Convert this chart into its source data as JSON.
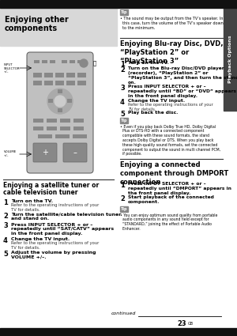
{
  "page_bg": "#ffffff",
  "left_col_bg": "#d8d8d8",
  "black_strip_color": "#111111",
  "header_title_line1": "Enjoying other",
  "header_title_line2": "components",
  "section1_title_line1": "Enjoying a satellite tuner or",
  "section1_title_line2": "cable television tuner",
  "section1_steps": [
    {
      "num": "1",
      "bold": "Turn on the TV.",
      "normal": "Refer to the operating instructions of your\nTV for details."
    },
    {
      "num": "2",
      "bold": "Turn the satellite/cable television tuner\nand stand on.",
      "normal": ""
    },
    {
      "num": "3",
      "bold": "Press INPUT SELECTOR + or –\nrepeatedly until “SAT/CATV” appears\nin the front panel display.",
      "normal": ""
    },
    {
      "num": "4",
      "bold": "Change the TV input.",
      "normal": "Refer to the operating instructions of your\nTV for details."
    },
    {
      "num": "5",
      "bold": "Adjust the volume by pressing\nVOLUME +/–.",
      "normal": ""
    }
  ],
  "right_tip1_text": "• The sound may be output from the TV’s speaker. In\n  this case, turn the volume of the TV’s speaker down\n  to the minimum.",
  "right_section2_title": "Enjoying Blu-ray Disc, DVD,\n“PlayStation 2” or\n“PlayStation 3”",
  "right_section2_steps": [
    {
      "num": "1",
      "bold": "Turn on the TV.",
      "normal": ""
    },
    {
      "num": "2",
      "bold": "Turn on the Blu-ray Disc/DVD player\n(recorder), “PlayStation 2” or\n“PlayStation 3”, and then turn the stand\non.",
      "normal": ""
    },
    {
      "num": "3",
      "bold": "Press INPUT SELECTOR + or –\nrepeatedly until “BD” or “DVD” appears\nin the front panel display.",
      "normal": ""
    },
    {
      "num": "4",
      "bold": "Change the TV input.",
      "normal": "Refer to the operating instructions of your\nTV for details."
    },
    {
      "num": "5",
      "bold": "Play back the disc.",
      "normal": ""
    }
  ],
  "right_tip2_text": "• Even if you play back Dolby True HD, Dolby Digital\n  Plus or DTS-HD with a connected component\n  compatible with these sound formats, the stand\n  accepts Dolby Digital or DTS. When you play back\n  these high-quality sound formats, set the connected\n  component to output the sound in multi channel PCM,\n  if possible.",
  "right_section3_title": "Enjoying a connected\ncomponent through DMPORT\nconnection",
  "right_section3_steps": [
    {
      "num": "1",
      "bold": "Press INPUT SELECTOR + or –\nrepeatedly until “DMPORT” appears in\nthe front panel display.",
      "normal": ""
    },
    {
      "num": "2",
      "bold": "Start playback of the connected\ncomponent.",
      "normal": ""
    }
  ],
  "right_tip3_text": "• You can enjoy optimum sound quality from portable\n  audio components in any sound field except for\n  “STANDARD,” joining the effect of Portable Audio\n  Enhancer.",
  "sidebar_text": "Playback Options",
  "footer_continued": "continued",
  "page_num": "23",
  "remote_body": "#c0c0c0",
  "remote_button": "#888888",
  "remote_outline": "#666666",
  "tip_box_bg": "#888888",
  "tip_box_text": "Tip",
  "divider_color": "#333333",
  "sidebar_bg": "#444444"
}
